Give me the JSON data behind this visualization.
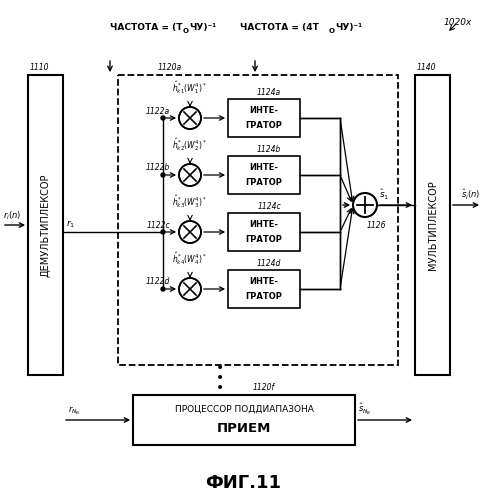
{
  "title": "ФИГ.11",
  "fig_label": "1020x",
  "freq_label1": "ЧАСТОТА = (Т  ОЧУ)⁻¹",
  "freq_label2": "ЧАСТОТА = (4Т  ОЧУ)⁻¹",
  "freq_label1_plain": "ЧАСТОТА = (Т",
  "freq_label1_sub": "О",
  "freq_label1_rest": "ЧУ)⁻¹",
  "freq_label2_plain": "ЧАСТОТА = (4Т",
  "freq_label2_sub": "О",
  "freq_label2_rest": "ЧУ)⁻¹",
  "demux_label": "ДЕМУЛЬТИПЛЕКСОР",
  "mux_label": "МУЛЬТИПЛЕКСОР",
  "proc_label1": "ПРОЦЕССОР ПОДДИАПАЗОНА",
  "proc_label2": "ПРИЕМ",
  "label_1110": "1110",
  "label_1120a": "1120a",
  "label_1140": "1140",
  "label_1122a": "1122a",
  "label_1122b": "1122b",
  "label_1122c": "1122c",
  "label_1122d": "1122d",
  "label_1124a": "1124a",
  "label_1124b": "1124b",
  "label_1124c": "1124c",
  "label_1124d": "1124d",
  "label_1126": "1126",
  "label_1120f": "1120f"
}
